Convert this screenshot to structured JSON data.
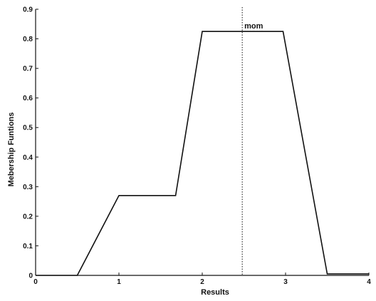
{
  "chart_data": {
    "type": "line",
    "xlabel": "Results",
    "ylabel": "Mebership Funtions",
    "xlim": [
      0,
      4
    ],
    "ylim": [
      0,
      0.9
    ],
    "x_ticks": [
      "0",
      "1",
      "2",
      "3",
      "4"
    ],
    "y_ticks": [
      "0",
      "0.1",
      "0.2",
      "0.3",
      "0.4",
      "0.5",
      "0.6",
      "0.7",
      "0.8",
      "0.9"
    ],
    "grid": false,
    "series": [
      {
        "x": [
          0,
          0.5,
          1.0,
          1.68,
          2.0,
          2.97,
          3.5,
          4.0
        ],
        "y": [
          0,
          0,
          0.27,
          0.27,
          0.825,
          0.825,
          0.005,
          0.005
        ]
      }
    ],
    "annotations": [
      {
        "type": "vline",
        "x": 2.48,
        "style": "dotted",
        "label": "mom"
      }
    ]
  }
}
